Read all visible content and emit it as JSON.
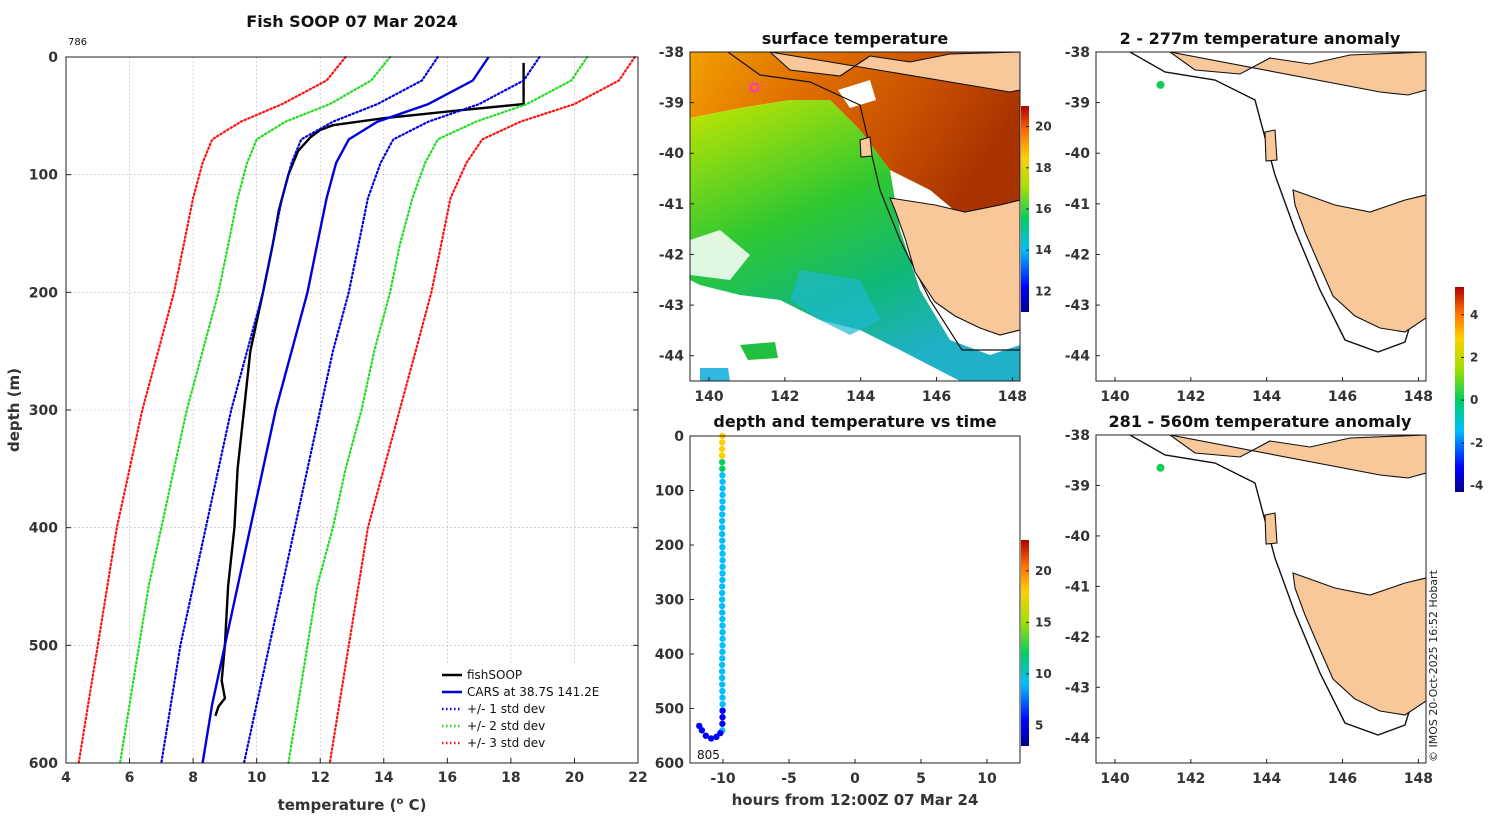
{
  "chart_data": [
    {
      "type": "line",
      "id": "profile",
      "title": "Fish SOOP 07 Mar 2024",
      "xlabel": "temperature (o C)",
      "xlabel_main": "temperature (",
      "xlabel_sup": "o",
      "xlabel_tail": " C)",
      "ylabel": "depth (m)",
      "xlim": [
        4,
        22
      ],
      "ylim": [
        600,
        0
      ],
      "xticks": [
        4,
        6,
        8,
        10,
        12,
        14,
        16,
        18,
        20,
        22
      ],
      "yticks": [
        0,
        100,
        200,
        300,
        400,
        500,
        600
      ],
      "corner_label": "786",
      "legend": [
        "fishSOOP",
        "CARS at 38.7S 141.2E",
        "+/- 1 std dev",
        "+/- 2 std dev",
        "+/- 3 std dev"
      ],
      "series": [
        {
          "name": "fishSOOP",
          "color": "#000000",
          "style": "solid",
          "depth": [
            5,
            40,
            45,
            52,
            58,
            62,
            68,
            80,
            100,
            130,
            160,
            200,
            250,
            300,
            350,
            400,
            450,
            500,
            530,
            545,
            552,
            560
          ],
          "temp": [
            18.4,
            18.4,
            16.5,
            14.0,
            12.4,
            12.0,
            11.7,
            11.3,
            11.0,
            10.7,
            10.5,
            10.2,
            9.8,
            9.6,
            9.4,
            9.3,
            9.1,
            9.0,
            8.9,
            9.0,
            8.8,
            8.7
          ]
        },
        {
          "name": "CARS mean",
          "color": "#0000dd",
          "style": "solid",
          "depth": [
            0,
            20,
            40,
            55,
            70,
            90,
            120,
            160,
            200,
            250,
            300,
            350,
            400,
            450,
            500,
            550,
            600
          ],
          "temp": [
            17.3,
            16.8,
            15.4,
            13.8,
            12.9,
            12.5,
            12.2,
            11.9,
            11.6,
            11.1,
            10.6,
            10.2,
            9.8,
            9.4,
            9.0,
            8.6,
            8.3
          ]
        },
        {
          "name": "+1 std",
          "color": "#0000dd",
          "style": "dotted",
          "depth": [
            0,
            20,
            40,
            55,
            70,
            90,
            120,
            160,
            200,
            250,
            300,
            350,
            400,
            450,
            500,
            550,
            600
          ],
          "temp": [
            18.9,
            18.4,
            17.0,
            15.4,
            14.3,
            13.9,
            13.5,
            13.2,
            12.9,
            12.4,
            12.0,
            11.6,
            11.2,
            10.8,
            10.4,
            10.0,
            9.6
          ]
        },
        {
          "name": "-1 std",
          "color": "#0000dd",
          "style": "dotted",
          "depth": [
            0,
            20,
            40,
            55,
            70,
            90,
            120,
            160,
            200,
            250,
            300,
            350,
            400,
            450,
            500,
            550,
            600
          ],
          "temp": [
            15.7,
            15.2,
            13.8,
            12.4,
            11.4,
            11.1,
            10.8,
            10.5,
            10.2,
            9.7,
            9.2,
            8.8,
            8.4,
            8.0,
            7.6,
            7.3,
            7.0
          ]
        },
        {
          "name": "+2 std",
          "color": "#22dd22",
          "style": "dotted",
          "depth": [
            0,
            20,
            40,
            55,
            70,
            90,
            120,
            160,
            200,
            250,
            300,
            350,
            400,
            450,
            500,
            550,
            600
          ],
          "temp": [
            20.4,
            19.9,
            18.5,
            16.9,
            15.7,
            15.3,
            14.9,
            14.5,
            14.2,
            13.7,
            13.3,
            12.8,
            12.4,
            11.9,
            11.6,
            11.3,
            11.0
          ]
        },
        {
          "name": "-2 std",
          "color": "#22dd22",
          "style": "dotted",
          "depth": [
            0,
            20,
            40,
            55,
            70,
            90,
            120,
            160,
            200,
            250,
            300,
            350,
            400,
            450,
            500,
            550,
            600
          ],
          "temp": [
            14.2,
            13.6,
            12.3,
            10.9,
            10.0,
            9.7,
            9.4,
            9.1,
            8.8,
            8.3,
            7.8,
            7.4,
            7.0,
            6.6,
            6.3,
            6.0,
            5.7
          ]
        },
        {
          "name": "+3 std",
          "color": "#ff1111",
          "style": "dotted",
          "depth": [
            0,
            20,
            40,
            55,
            70,
            90,
            120,
            160,
            200,
            250,
            300,
            350,
            400,
            450,
            500,
            550,
            600
          ],
          "temp": [
            21.9,
            21.4,
            20.0,
            18.3,
            17.1,
            16.6,
            16.1,
            15.8,
            15.5,
            15.0,
            14.5,
            14.0,
            13.5,
            13.2,
            12.9,
            12.6,
            12.3
          ]
        },
        {
          "name": "-3 std",
          "color": "#ff1111",
          "style": "dotted",
          "depth": [
            0,
            20,
            40,
            55,
            70,
            90,
            120,
            160,
            200,
            250,
            300,
            350,
            400,
            450,
            500,
            550,
            600
          ],
          "temp": [
            12.8,
            12.2,
            10.8,
            9.5,
            8.6,
            8.3,
            8.0,
            7.7,
            7.4,
            6.9,
            6.4,
            6.0,
            5.6,
            5.3,
            5.0,
            4.7,
            4.4
          ]
        }
      ]
    },
    {
      "type": "heatmap",
      "id": "sst_map",
      "title": "surface temperature",
      "xlim": [
        139.5,
        148.2
      ],
      "ylim": [
        -44.5,
        -38
      ],
      "xticks": [
        140,
        142,
        144,
        146,
        148
      ],
      "yticks": [
        -38,
        -39,
        -40,
        -41,
        -42,
        -43,
        -44
      ],
      "colorbar": {
        "min": 11,
        "max": 21,
        "ticks": [
          12,
          14,
          16,
          18,
          20
        ]
      },
      "marker": {
        "lon": 141.2,
        "lat": -38.7,
        "color": "#ff33cc"
      }
    },
    {
      "type": "scatter",
      "id": "depth_time",
      "title": "depth and temperature vs time",
      "xlabel": "hours from 12:00Z 07 Mar 24",
      "xlim": [
        -12.5,
        12.5
      ],
      "ylim": [
        600,
        0
      ],
      "xticks": [
        -10,
        -5,
        0,
        5,
        10
      ],
      "yticks": [
        0,
        100,
        200,
        300,
        400,
        500,
        600
      ],
      "end_label": "805",
      "colorbar": {
        "min": 3,
        "max": 23,
        "ticks": [
          5,
          10,
          15,
          20
        ]
      }
    },
    {
      "type": "heatmap",
      "id": "anom_upper",
      "title": "2 - 277m temperature anomaly",
      "xlim": [
        139.5,
        148.2
      ],
      "ylim": [
        -44.5,
        -38
      ],
      "xticks": [
        140,
        142,
        144,
        146,
        148
      ],
      "yticks": [
        -38,
        -39,
        -40,
        -41,
        -42,
        -43,
        -44
      ],
      "marker": {
        "lon": 141.2,
        "lat": -38.65,
        "color": "#11cc55"
      }
    },
    {
      "type": "heatmap",
      "id": "anom_lower",
      "title": "281 - 560m temperature anomaly",
      "xlim": [
        139.5,
        148.2
      ],
      "ylim": [
        -44.5,
        -38
      ],
      "xticks": [
        140,
        142,
        144,
        146,
        148
      ],
      "yticks": [
        -38,
        -39,
        -40,
        -41,
        -42,
        -43,
        -44
      ],
      "marker": {
        "lon": 141.2,
        "lat": -38.65,
        "color": "#11cc55"
      },
      "colorbar": {
        "min": -4.3,
        "max": 5.3,
        "ticks": [
          -4,
          -2,
          0,
          2,
          4
        ]
      }
    }
  ],
  "credit": "© IMOS 20-Oct-2025 16:52 Hobart",
  "colors": {
    "land": "#f8c89a",
    "coast": "#111111"
  }
}
